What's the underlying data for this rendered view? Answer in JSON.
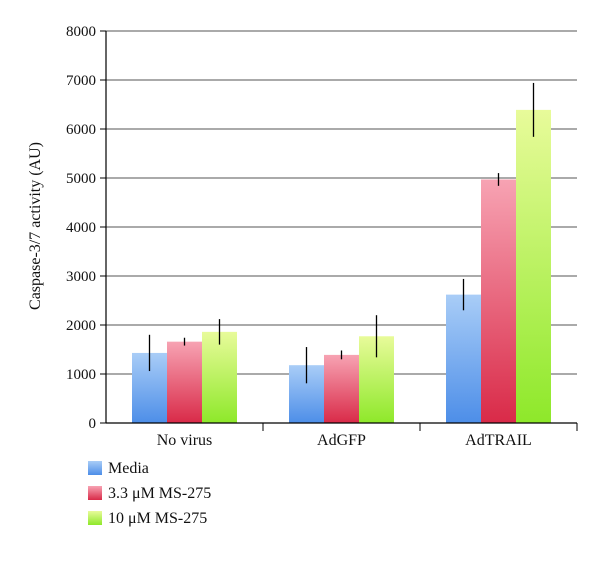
{
  "chart_data": {
    "type": "bar",
    "title": "",
    "xlabel": "",
    "ylabel": "Caspase-3/7 activity (AU)",
    "ylim": [
      0,
      8000
    ],
    "yticks": [
      0,
      1000,
      2000,
      3000,
      4000,
      5000,
      6000,
      7000,
      8000
    ],
    "categories": [
      "No virus",
      "AdGFP",
      "AdTRAIL"
    ],
    "grid": true,
    "legend_position": "bottom-left",
    "series": [
      {
        "name": "Media",
        "values": [
          1430,
          1180,
          2620
        ],
        "error": [
          370,
          370,
          320
        ],
        "color_top": "#a9cdf7",
        "color_bottom": "#4d8ee8"
      },
      {
        "name": "3.3 μM MS-275",
        "values": [
          1660,
          1390,
          4970
        ],
        "error": [
          80,
          90,
          130
        ],
        "color_top": "#f7a3b3",
        "color_bottom": "#d92a48"
      },
      {
        "name": "10 μM MS-275",
        "values": [
          1860,
          1770,
          6390
        ],
        "error": [
          260,
          430,
          550
        ],
        "color_top": "#e8fb9a",
        "color_bottom": "#8ee82a"
      }
    ]
  }
}
